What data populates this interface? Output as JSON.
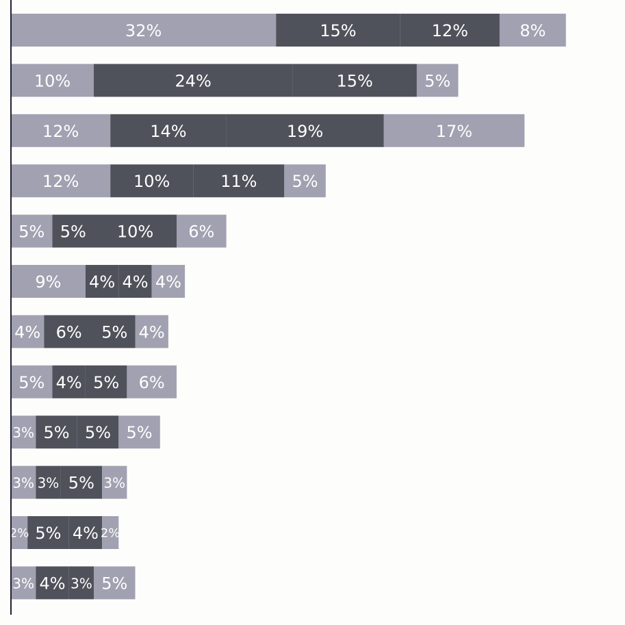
{
  "chart_data": {
    "type": "bar",
    "orientation": "horizontal",
    "stacked": true,
    "grid": false,
    "legend": "none",
    "xlim": [
      0,
      100
    ],
    "colors": {
      "light": "#a1a1b1",
      "dark": "#4f525a",
      "label": "#ffffff",
      "axis": "#222233"
    },
    "series": [
      {
        "tone": "light",
        "values": [
          32,
          10,
          12,
          12,
          5,
          9,
          4,
          5,
          3,
          3,
          2,
          3
        ]
      },
      {
        "tone": "dark",
        "values": [
          15,
          24,
          14,
          10,
          5,
          4,
          6,
          4,
          5,
          3,
          5,
          4
        ]
      },
      {
        "tone": "dark",
        "values": [
          12,
          15,
          19,
          11,
          10,
          4,
          5,
          5,
          5,
          5,
          4,
          3
        ]
      },
      {
        "tone": "light",
        "values": [
          8,
          5,
          17,
          5,
          6,
          4,
          4,
          6,
          5,
          3,
          2,
          5
        ]
      }
    ],
    "labels": [
      [
        "32%",
        "15%",
        "12%",
        "8%"
      ],
      [
        "10%",
        "24%",
        "15%",
        "5%"
      ],
      [
        "12%",
        "14%",
        "19%",
        "17%"
      ],
      [
        "12%",
        "10%",
        "11%",
        "5%"
      ],
      [
        "5%",
        "5%",
        "10%",
        "6%"
      ],
      [
        "9%",
        "4%",
        "4%",
        "4%"
      ],
      [
        "4%",
        "6%",
        "5%",
        "4%"
      ],
      [
        "5%",
        "4%",
        "5%",
        "6%"
      ],
      [
        "3%",
        "5%",
        "5%",
        "5%"
      ],
      [
        "3%",
        "3%",
        "5%",
        "3%"
      ],
      [
        "2%",
        "5%",
        "4%",
        "2%"
      ],
      [
        "3%",
        "4%",
        "3%",
        "5%"
      ]
    ]
  }
}
